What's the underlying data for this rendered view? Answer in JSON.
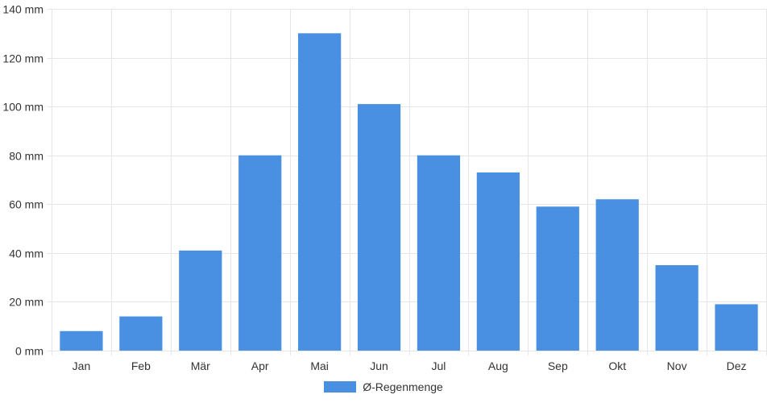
{
  "chart_data": {
    "type": "bar",
    "categories": [
      "Jan",
      "Feb",
      "Mär",
      "Apr",
      "Mai",
      "Jun",
      "Jul",
      "Aug",
      "Sep",
      "Okt",
      "Nov",
      "Dez"
    ],
    "series": [
      {
        "name": "Ø-Regenmenge",
        "values": [
          8,
          14,
          41,
          80,
          130,
          101,
          80,
          73,
          59,
          62,
          35,
          19
        ]
      }
    ],
    "ylim": [
      0,
      140
    ],
    "yticks": [
      0,
      20,
      40,
      60,
      80,
      100,
      120,
      140
    ],
    "y_tick_suffix": " mm",
    "grid": true,
    "legend_position": "bottom-center",
    "colors": {
      "bar": "#4a90e2",
      "grid": "#e6e6e6",
      "axis_text": "#333333"
    }
  }
}
